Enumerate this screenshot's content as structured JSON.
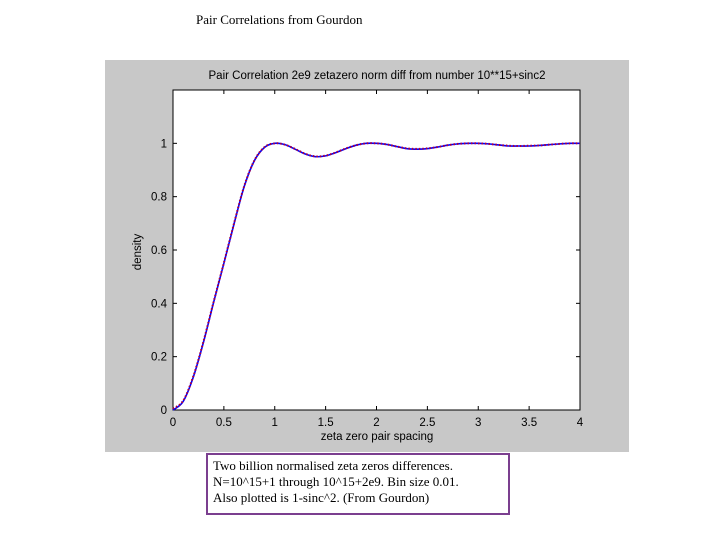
{
  "page": {
    "title": "Pair Correlations from Gourdon",
    "caption": [
      "Two billion normalised zeta zeros differences.",
      "N=10^15+1 through 10^15+2e9. Bin size 0.01.",
      "Also plotted is 1-sinc^2. (From Gourdon)"
    ]
  },
  "chart_data": {
    "type": "line",
    "title": "Pair Correlation 2e9 zetazero norm diff from number 10**15+sinc2",
    "xlabel": "zeta zero pair spacing",
    "ylabel": "density",
    "xlim": [
      0,
      4
    ],
    "ylim": [
      0,
      1.2
    ],
    "xticks": [
      0,
      0.5,
      1,
      1.5,
      2,
      2.5,
      3,
      3.5,
      4
    ],
    "xtick_labels": [
      "0",
      "0.5",
      "1",
      "1.5",
      "2",
      "2.5",
      "3",
      "3.5",
      "4"
    ],
    "yticks": [
      0,
      0.2,
      0.4,
      0.6,
      0.8,
      1
    ],
    "ytick_labels": [
      "0",
      "0.2",
      "0.4",
      "0.6",
      "0.8",
      "1"
    ],
    "grid": false,
    "series": [
      {
        "color": "#0000ff",
        "style": "solid",
        "x": [
          0,
          0.1,
          0.2,
          0.3,
          0.4,
          0.5,
          0.6,
          0.7,
          0.8,
          0.9,
          1.0,
          1.1,
          1.2,
          1.3,
          1.4,
          1.5,
          1.6,
          1.7,
          1.8,
          1.9,
          2.0,
          2.1,
          2.2,
          2.3,
          2.4,
          2.5,
          2.6,
          2.7,
          2.8,
          2.9,
          3.0,
          3.1,
          3.2,
          3.3,
          3.4,
          3.5,
          3.6,
          3.7,
          3.8,
          3.9,
          4.0
        ],
        "y": [
          0,
          0.032,
          0.124,
          0.255,
          0.405,
          0.55,
          0.698,
          0.838,
          0.935,
          0.985,
          1.0,
          0.995,
          0.978,
          0.96,
          0.95,
          0.953,
          0.965,
          0.98,
          0.993,
          1.0,
          1.0,
          0.996,
          0.988,
          0.98,
          0.978,
          0.98,
          0.986,
          0.993,
          0.998,
          1.0,
          1.0,
          0.998,
          0.994,
          0.99,
          0.99,
          0.99,
          0.992,
          0.995,
          0.998,
          1.0,
          1.0
        ]
      },
      {
        "color": "#b0003a",
        "style": "dotted",
        "x": [
          0,
          0.1,
          0.2,
          0.3,
          0.4,
          0.5,
          0.6,
          0.7,
          0.8,
          0.9,
          1.0,
          1.1,
          1.2,
          1.3,
          1.4,
          1.5,
          1.6,
          1.7,
          1.8,
          1.9,
          2.0,
          2.1,
          2.2,
          2.3,
          2.4,
          2.5,
          2.6,
          2.7,
          2.8,
          2.9,
          3.0,
          3.1,
          3.2,
          3.3,
          3.4,
          3.5,
          3.6,
          3.7,
          3.8,
          3.9,
          4.0
        ],
        "y": [
          0.005,
          0.035,
          0.127,
          0.258,
          0.407,
          0.552,
          0.7,
          0.84,
          0.936,
          0.986,
          1.0,
          0.995,
          0.979,
          0.961,
          0.951,
          0.954,
          0.966,
          0.981,
          0.993,
          1.0,
          1.0,
          0.996,
          0.988,
          0.981,
          0.979,
          0.981,
          0.986,
          0.993,
          0.998,
          1.0,
          1.0,
          0.998,
          0.994,
          0.991,
          0.99,
          0.991,
          0.992,
          0.995,
          0.998,
          1.0,
          1.0
        ]
      }
    ]
  }
}
